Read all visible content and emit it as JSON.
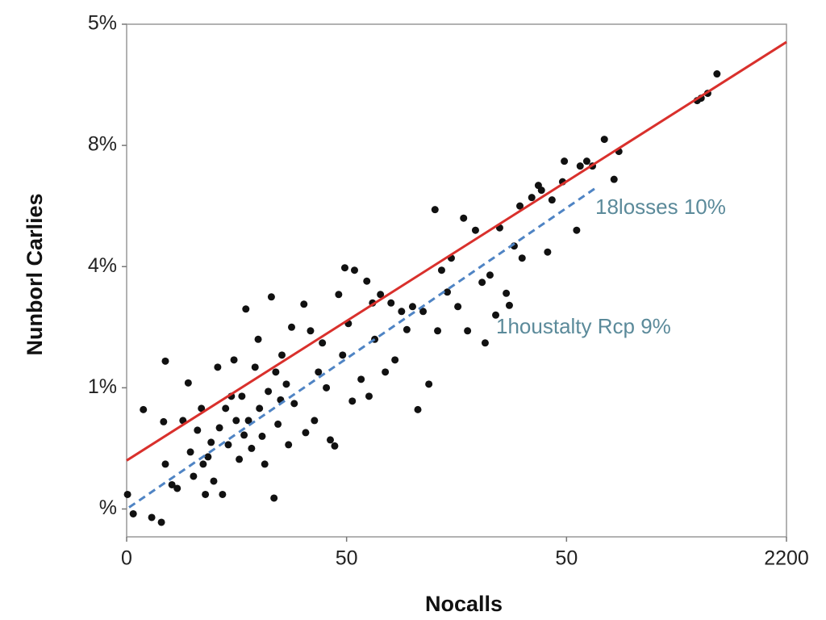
{
  "chart_data": {
    "type": "scatter",
    "x_label": "Nocalls",
    "y_label": "Nunborl Carlies",
    "xlim": [
      0,
      150
    ],
    "ylim": [
      -0.23,
      4
    ],
    "xticks": [
      0,
      50,
      {
        "value": 100,
        "label": "50"
      },
      {
        "value": 150,
        "label": "2200"
      }
    ],
    "yticks": [
      {
        "value": 0,
        "label": "%"
      },
      {
        "value": 1,
        "label": "1%"
      },
      {
        "value": 2,
        "label": "4%"
      },
      {
        "value": 3,
        "label": "8%"
      },
      {
        "value": 4,
        "label": "5%"
      }
    ],
    "color": "#111111",
    "x": [
      0.2,
      1.5,
      3.8,
      5.7,
      7.9,
      8.4,
      8.8,
      8.8,
      10.3,
      11.5,
      12.8,
      14.0,
      14.5,
      15.2,
      16.1,
      17.0,
      17.4,
      17.9,
      18.5,
      19.2,
      19.8,
      20.7,
      21.1,
      21.8,
      22.5,
      23.1,
      23.8,
      24.4,
      24.9,
      25.6,
      26.2,
      26.7,
      27.1,
      27.7,
      28.4,
      29.2,
      29.9,
      30.2,
      30.8,
      31.4,
      32.2,
      32.9,
      33.5,
      33.9,
      34.4,
      35.0,
      35.3,
      36.3,
      36.8,
      37.5,
      38.1,
      40.3,
      40.7,
      41.8,
      42.7,
      43.6,
      44.5,
      45.4,
      46.3,
      47.3,
      48.2,
      49.1,
      49.6,
      50.4,
      51.3,
      51.8,
      53.3,
      54.6,
      55.1,
      55.9,
      56.4,
      57.7,
      58.8,
      60.1,
      61.0,
      62.5,
      63.7,
      65.0,
      66.2,
      67.4,
      68.7,
      70.1,
      70.7,
      71.6,
      72.9,
      73.8,
      75.3,
      76.6,
      77.5,
      79.3,
      80.8,
      81.5,
      82.6,
      83.9,
      84.8,
      86.3,
      87.0,
      88.1,
      89.4,
      89.9,
      92.1,
      93.6,
      94.3,
      95.7,
      96.7,
      99.1,
      99.5,
      102.3,
      103.1,
      104.6,
      105.9,
      108.6,
      110.8,
      111.9,
      129.7,
      130.6,
      132.1,
      134.2
    ],
    "values": [
      0.12,
      -0.04,
      0.82,
      -0.07,
      -0.11,
      0.72,
      1.22,
      0.37,
      0.2,
      0.17,
      0.73,
      1.04,
      0.47,
      0.27,
      0.65,
      0.83,
      0.37,
      0.12,
      0.43,
      0.55,
      0.23,
      1.17,
      0.67,
      0.12,
      0.83,
      0.53,
      0.93,
      1.23,
      0.73,
      0.41,
      0.93,
      0.61,
      1.65,
      0.73,
      0.5,
      1.17,
      1.4,
      0.83,
      0.6,
      0.37,
      0.97,
      1.75,
      0.09,
      1.13,
      0.7,
      0.9,
      1.27,
      1.03,
      0.53,
      1.5,
      0.87,
      1.69,
      0.63,
      1.47,
      0.73,
      1.13,
      1.37,
      1.0,
      0.57,
      0.52,
      1.77,
      1.27,
      1.99,
      1.53,
      0.89,
      1.97,
      1.07,
      1.88,
      0.93,
      1.7,
      1.4,
      1.77,
      1.13,
      1.7,
      1.23,
      1.63,
      1.48,
      1.67,
      0.82,
      1.63,
      1.03,
      2.47,
      1.47,
      1.97,
      1.79,
      2.07,
      1.67,
      2.4,
      1.47,
      2.3,
      1.87,
      1.37,
      1.93,
      1.6,
      2.32,
      1.78,
      1.68,
      2.17,
      2.5,
      2.07,
      2.57,
      2.67,
      2.63,
      2.12,
      2.55,
      2.7,
      2.87,
      2.3,
      2.83,
      2.87,
      2.83,
      3.05,
      2.72,
      2.95,
      3.37,
      3.39,
      3.43,
      3.59
    ],
    "trend_lines": [
      {
        "x": [
          0,
          150
        ],
        "values": [
          0.4,
          3.853
        ],
        "color": "#d9302c",
        "dashed": false
      },
      {
        "x": [
          0.55,
          106.8
        ],
        "values": [
          0.013,
          2.653
        ],
        "color": "#4f84c4",
        "dashed": true
      }
    ],
    "annotations": [
      "18losses 10%",
      "1houstalty Rcp 9%"
    ]
  }
}
